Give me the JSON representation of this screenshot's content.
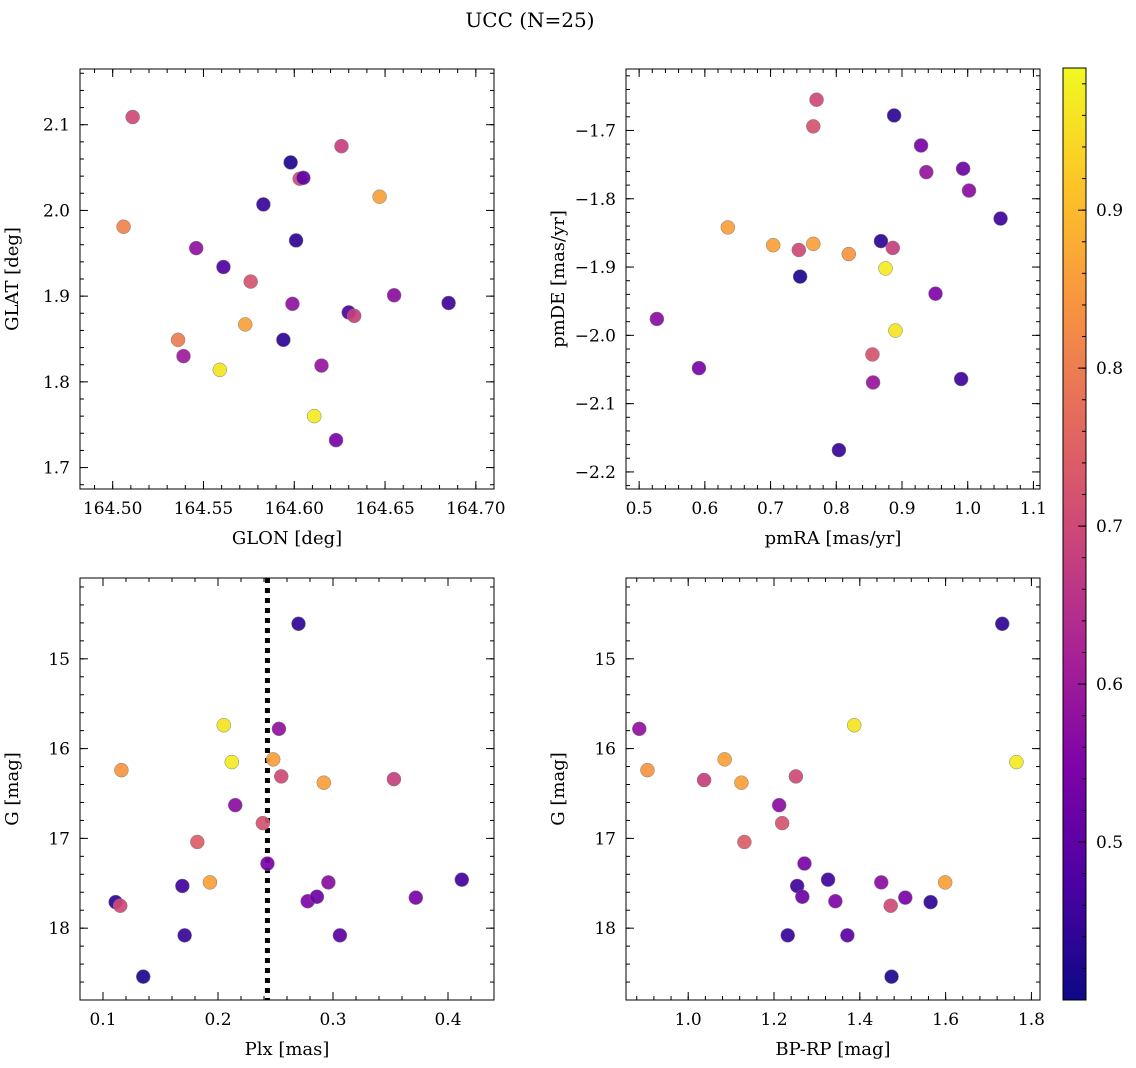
{
  "figure": {
    "title": "UCC (N=25)"
  },
  "colorbar": {
    "colormap": "plasma",
    "range": [
      0.4,
      0.99
    ],
    "ticks": [
      0.5,
      0.6,
      0.7,
      0.8,
      0.9
    ],
    "tick_labels": [
      "0.5",
      "0.6",
      "0.7",
      "0.8",
      "0.9"
    ]
  },
  "chart_data": [
    {
      "type": "scatter",
      "xlabel": "GLON [deg]",
      "ylabel": "GLAT [deg]",
      "xlim": [
        164.482,
        164.71
      ],
      "ylim": [
        1.675,
        2.165
      ],
      "xticks": [
        164.5,
        164.55,
        164.6,
        164.65,
        164.7
      ],
      "xtick_labels": [
        "164.50",
        "164.55",
        "164.60",
        "164.65",
        "164.70"
      ],
      "yticks": [
        1.7,
        1.8,
        1.9,
        2.0,
        2.1
      ],
      "ytick_labels": [
        "1.7",
        "1.8",
        "1.9",
        "2.0",
        "2.1"
      ],
      "y_inverted": false,
      "points": [
        {
          "x": 164.511,
          "y": 2.109,
          "c": 0.7
        },
        {
          "x": 164.506,
          "y": 1.981,
          "c": 0.81
        },
        {
          "x": 164.546,
          "y": 1.956,
          "c": 0.58
        },
        {
          "x": 164.561,
          "y": 1.934,
          "c": 0.48
        },
        {
          "x": 164.583,
          "y": 2.007,
          "c": 0.45
        },
        {
          "x": 164.598,
          "y": 2.056,
          "c": 0.42
        },
        {
          "x": 164.603,
          "y": 2.037,
          "c": 0.7
        },
        {
          "x": 164.605,
          "y": 2.038,
          "c": 0.5
        },
        {
          "x": 164.626,
          "y": 2.075,
          "c": 0.68
        },
        {
          "x": 164.647,
          "y": 2.016,
          "c": 0.86
        },
        {
          "x": 164.601,
          "y": 1.965,
          "c": 0.44
        },
        {
          "x": 164.576,
          "y": 1.917,
          "c": 0.72
        },
        {
          "x": 164.573,
          "y": 1.867,
          "c": 0.86
        },
        {
          "x": 164.536,
          "y": 1.849,
          "c": 0.8
        },
        {
          "x": 164.539,
          "y": 1.83,
          "c": 0.6
        },
        {
          "x": 164.559,
          "y": 1.814,
          "c": 0.96
        },
        {
          "x": 164.594,
          "y": 1.849,
          "c": 0.44
        },
        {
          "x": 164.599,
          "y": 1.891,
          "c": 0.58
        },
        {
          "x": 164.63,
          "y": 1.881,
          "c": 0.48
        },
        {
          "x": 164.633,
          "y": 1.877,
          "c": 0.68
        },
        {
          "x": 164.615,
          "y": 1.819,
          "c": 0.59
        },
        {
          "x": 164.611,
          "y": 1.76,
          "c": 0.97
        },
        {
          "x": 164.623,
          "y": 1.732,
          "c": 0.54
        },
        {
          "x": 164.655,
          "y": 1.901,
          "c": 0.57
        },
        {
          "x": 164.685,
          "y": 1.892,
          "c": 0.46
        }
      ]
    },
    {
      "type": "scatter",
      "xlabel": "pmRA [mas/yr]",
      "ylabel": "pmDE [mas/yr]",
      "xlim": [
        0.48,
        1.11
      ],
      "ylim": [
        -2.225,
        -1.61
      ],
      "xticks": [
        0.5,
        0.6,
        0.7,
        0.8,
        0.9,
        1.0,
        1.1
      ],
      "xtick_labels": [
        "0.5",
        "0.6",
        "0.7",
        "0.8",
        "0.9",
        "1.0",
        "1.1"
      ],
      "yticks": [
        -2.2,
        -2.1,
        -2.0,
        -1.9,
        -1.8,
        -1.7
      ],
      "ytick_labels": [
        "−2.2",
        "−2.1",
        "−2.0",
        "−1.9",
        "−1.8",
        "−1.7"
      ],
      "y_inverted": false,
      "points": [
        {
          "x": 0.77,
          "y": -1.655,
          "c": 0.7
        },
        {
          "x": 0.765,
          "y": -1.694,
          "c": 0.72
        },
        {
          "x": 0.888,
          "y": -1.678,
          "c": 0.44
        },
        {
          "x": 0.929,
          "y": -1.722,
          "c": 0.54
        },
        {
          "x": 0.937,
          "y": -1.761,
          "c": 0.59
        },
        {
          "x": 0.993,
          "y": -1.756,
          "c": 0.52
        },
        {
          "x": 1.002,
          "y": -1.788,
          "c": 0.57
        },
        {
          "x": 1.05,
          "y": -1.829,
          "c": 0.46
        },
        {
          "x": 0.635,
          "y": -1.842,
          "c": 0.86
        },
        {
          "x": 0.704,
          "y": -1.868,
          "c": 0.86
        },
        {
          "x": 0.743,
          "y": -1.875,
          "c": 0.7
        },
        {
          "x": 0.765,
          "y": -1.866,
          "c": 0.86
        },
        {
          "x": 0.819,
          "y": -1.881,
          "c": 0.84
        },
        {
          "x": 0.868,
          "y": -1.862,
          "c": 0.44
        },
        {
          "x": 0.886,
          "y": -1.872,
          "c": 0.68
        },
        {
          "x": 0.875,
          "y": -1.902,
          "c": 0.97
        },
        {
          "x": 0.745,
          "y": -1.914,
          "c": 0.42
        },
        {
          "x": 0.951,
          "y": -1.939,
          "c": 0.55
        },
        {
          "x": 0.527,
          "y": -1.976,
          "c": 0.57
        },
        {
          "x": 0.89,
          "y": -1.993,
          "c": 0.96
        },
        {
          "x": 0.855,
          "y": -2.028,
          "c": 0.72
        },
        {
          "x": 0.591,
          "y": -2.048,
          "c": 0.54
        },
        {
          "x": 0.856,
          "y": -2.069,
          "c": 0.59
        },
        {
          "x": 0.99,
          "y": -2.064,
          "c": 0.46
        },
        {
          "x": 0.804,
          "y": -2.168,
          "c": 0.45
        }
      ]
    },
    {
      "type": "scatter",
      "xlabel": "Plx [mas]",
      "ylabel": "G [mag]",
      "xlim": [
        0.08,
        0.44
      ],
      "ylim": [
        14.1,
        18.8
      ],
      "xticks": [
        0.1,
        0.2,
        0.3,
        0.4
      ],
      "xtick_labels": [
        "0.1",
        "0.2",
        "0.3",
        "0.4"
      ],
      "yticks": [
        15,
        16,
        17,
        18
      ],
      "ytick_labels": [
        "15",
        "16",
        "17",
        "18"
      ],
      "y_inverted": true,
      "vline": {
        "x": 0.243,
        "style": "dotted",
        "color": "#000000"
      },
      "points": [
        {
          "x": 0.27,
          "y": 14.61,
          "c": 0.44
        },
        {
          "x": 0.205,
          "y": 15.74,
          "c": 0.96
        },
        {
          "x": 0.253,
          "y": 15.78,
          "c": 0.58
        },
        {
          "x": 0.116,
          "y": 16.24,
          "c": 0.84
        },
        {
          "x": 0.212,
          "y": 16.15,
          "c": 0.97
        },
        {
          "x": 0.248,
          "y": 16.12,
          "c": 0.86
        },
        {
          "x": 0.255,
          "y": 16.31,
          "c": 0.7
        },
        {
          "x": 0.292,
          "y": 16.38,
          "c": 0.86
        },
        {
          "x": 0.353,
          "y": 16.34,
          "c": 0.68
        },
        {
          "x": 0.215,
          "y": 16.63,
          "c": 0.57
        },
        {
          "x": 0.239,
          "y": 16.83,
          "c": 0.72
        },
        {
          "x": 0.182,
          "y": 17.04,
          "c": 0.74
        },
        {
          "x": 0.243,
          "y": 17.28,
          "c": 0.54
        },
        {
          "x": 0.193,
          "y": 17.49,
          "c": 0.86
        },
        {
          "x": 0.169,
          "y": 17.53,
          "c": 0.46
        },
        {
          "x": 0.296,
          "y": 17.49,
          "c": 0.57
        },
        {
          "x": 0.412,
          "y": 17.46,
          "c": 0.46
        },
        {
          "x": 0.111,
          "y": 17.71,
          "c": 0.44
        },
        {
          "x": 0.115,
          "y": 17.75,
          "c": 0.7
        },
        {
          "x": 0.278,
          "y": 17.7,
          "c": 0.55
        },
        {
          "x": 0.286,
          "y": 17.65,
          "c": 0.52
        },
        {
          "x": 0.372,
          "y": 17.66,
          "c": 0.54
        },
        {
          "x": 0.171,
          "y": 18.08,
          "c": 0.45
        },
        {
          "x": 0.306,
          "y": 18.08,
          "c": 0.5
        },
        {
          "x": 0.135,
          "y": 18.54,
          "c": 0.42
        }
      ]
    },
    {
      "type": "scatter",
      "xlabel": "BP-RP [mag]",
      "ylabel": "G [mag]",
      "xlim": [
        0.855,
        1.82
      ],
      "ylim": [
        14.1,
        18.8
      ],
      "xticks": [
        1.0,
        1.2,
        1.4,
        1.6,
        1.8
      ],
      "xtick_labels": [
        "1.0",
        "1.2",
        "1.4",
        "1.6",
        "1.8"
      ],
      "yticks": [
        15,
        16,
        17,
        18
      ],
      "ytick_labels": [
        "15",
        "16",
        "17",
        "18"
      ],
      "y_inverted": true,
      "points": [
        {
          "x": 1.732,
          "y": 14.61,
          "c": 0.44
        },
        {
          "x": 1.387,
          "y": 15.74,
          "c": 0.96
        },
        {
          "x": 0.886,
          "y": 15.78,
          "c": 0.58
        },
        {
          "x": 0.905,
          "y": 16.24,
          "c": 0.84
        },
        {
          "x": 1.765,
          "y": 16.15,
          "c": 0.97
        },
        {
          "x": 1.085,
          "y": 16.12,
          "c": 0.86
        },
        {
          "x": 1.037,
          "y": 16.35,
          "c": 0.68
        },
        {
          "x": 1.124,
          "y": 16.38,
          "c": 0.86
        },
        {
          "x": 1.251,
          "y": 16.31,
          "c": 0.7
        },
        {
          "x": 1.212,
          "y": 16.63,
          "c": 0.57
        },
        {
          "x": 1.219,
          "y": 16.83,
          "c": 0.72
        },
        {
          "x": 1.131,
          "y": 17.04,
          "c": 0.74
        },
        {
          "x": 1.271,
          "y": 17.28,
          "c": 0.54
        },
        {
          "x": 1.326,
          "y": 17.46,
          "c": 0.46
        },
        {
          "x": 1.254,
          "y": 17.53,
          "c": 0.46
        },
        {
          "x": 1.45,
          "y": 17.49,
          "c": 0.57
        },
        {
          "x": 1.599,
          "y": 17.49,
          "c": 0.86
        },
        {
          "x": 1.266,
          "y": 17.65,
          "c": 0.52
        },
        {
          "x": 1.343,
          "y": 17.7,
          "c": 0.55
        },
        {
          "x": 1.472,
          "y": 17.75,
          "c": 0.7
        },
        {
          "x": 1.506,
          "y": 17.66,
          "c": 0.54
        },
        {
          "x": 1.565,
          "y": 17.71,
          "c": 0.44
        },
        {
          "x": 1.232,
          "y": 18.08,
          "c": 0.45
        },
        {
          "x": 1.371,
          "y": 18.08,
          "c": 0.5
        },
        {
          "x": 1.474,
          "y": 18.54,
          "c": 0.42
        }
      ]
    }
  ]
}
